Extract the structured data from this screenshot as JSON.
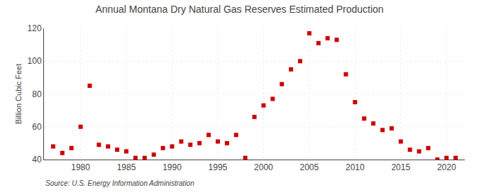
{
  "chart_data": {
    "type": "scatter",
    "title": "Annual Montana Dry Natural Gas Reserves Estimated Production",
    "ylabel": "Billion Cubic Feet",
    "annotations": [
      "Source: U.S. Energy Information Administration"
    ],
    "x": [
      1977,
      1978,
      1979,
      1980,
      1981,
      1982,
      1983,
      1984,
      1985,
      1986,
      1987,
      1988,
      1989,
      1990,
      1991,
      1992,
      1993,
      1994,
      1995,
      1996,
      1997,
      1998,
      1999,
      2000,
      2001,
      2002,
      2003,
      2004,
      2005,
      2006,
      2007,
      2008,
      2009,
      2010,
      2011,
      2012,
      2013,
      2014,
      2015,
      2016,
      2017,
      2018,
      2019,
      2020,
      2021
    ],
    "values": [
      48,
      44,
      47,
      60,
      85,
      49,
      48,
      46,
      45,
      41,
      41,
      43,
      47,
      48,
      51,
      49,
      50,
      55,
      51,
      50,
      55,
      41,
      66,
      73,
      77,
      86,
      95,
      100,
      117,
      111,
      114,
      113,
      92,
      75,
      65,
      62,
      58,
      59,
      51,
      46,
      45,
      47,
      40,
      41,
      41
    ],
    "color": "#cc0000",
    "marker": "square",
    "xlim": [
      1976,
      2022
    ],
    "xticks": [
      1980,
      1985,
      1990,
      1995,
      2000,
      2005,
      2010,
      2015,
      2020
    ],
    "ylim": [
      40,
      120
    ],
    "yticks": [
      40,
      60,
      80,
      100,
      120
    ],
    "grid": true
  }
}
